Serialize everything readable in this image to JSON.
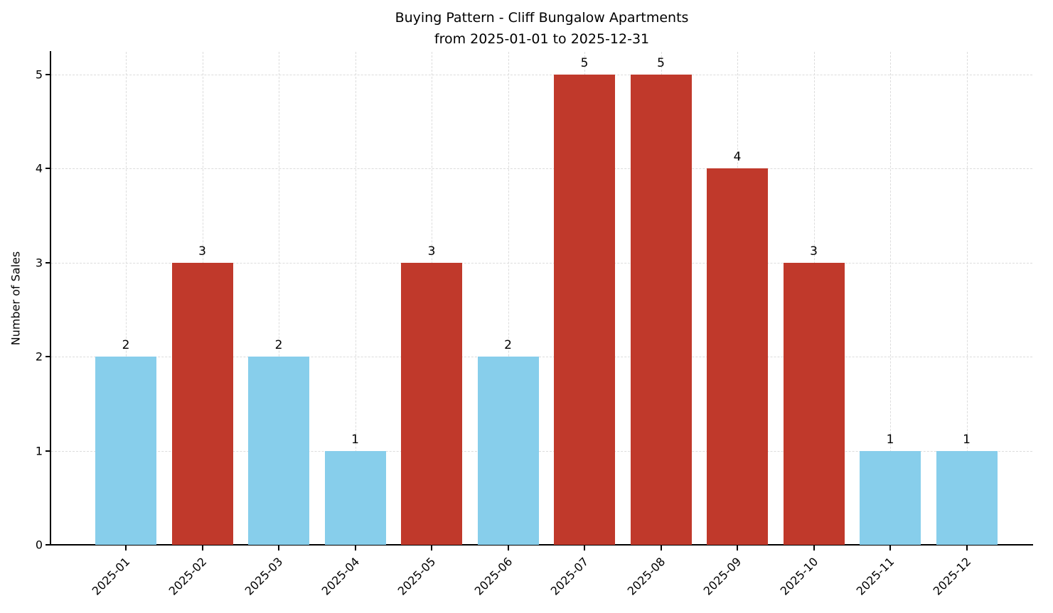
{
  "chart_data": {
    "type": "bar",
    "title": "Buying Pattern - Cliff Bungalow Apartments",
    "subtitle": "from 2025-01-01 to 2025-12-31",
    "xlabel": "",
    "ylabel": "Number of Sales",
    "categories": [
      "2025-01",
      "2025-02",
      "2025-03",
      "2025-04",
      "2025-05",
      "2025-06",
      "2025-07",
      "2025-08",
      "2025-09",
      "2025-10",
      "2025-11",
      "2025-12"
    ],
    "values": [
      2,
      3,
      2,
      1,
      3,
      2,
      5,
      5,
      4,
      3,
      1,
      1
    ],
    "bar_colors": [
      "#87CEEB",
      "#C0392B",
      "#87CEEB",
      "#87CEEB",
      "#C0392B",
      "#87CEEB",
      "#C0392B",
      "#C0392B",
      "#C0392B",
      "#C0392B",
      "#87CEEB",
      "#87CEEB"
    ],
    "value_labels": [
      2,
      3,
      2,
      1,
      3,
      2,
      5,
      5,
      4,
      3,
      1,
      1
    ],
    "yticks": [
      0,
      1,
      2,
      3,
      4,
      5
    ],
    "ylim": [
      0,
      5.25
    ],
    "grid": "dashed",
    "legend": "none",
    "colors": {
      "low_bar": "#87CEEB",
      "high_bar": "#C0392B",
      "grid": "#dcdcdc",
      "axis": "#000000",
      "background": "#ffffff"
    }
  }
}
